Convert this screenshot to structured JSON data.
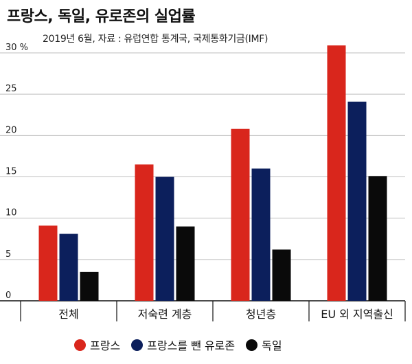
{
  "chart_data": {
    "type": "bar",
    "title": "프랑스, 독일, 유로존의 실업률",
    "subtitle": "2019년 6월, 자료 : 유럽연합 통계국, 국제통화기금(IMF)",
    "categories": [
      "전체",
      "저숙련 계층",
      "청년층",
      "EU 외 지역출신"
    ],
    "y_ticks": [
      "0",
      "5",
      "10",
      "15",
      "20",
      "25",
      "30 %"
    ],
    "ylim": [
      0,
      32
    ],
    "grid": true,
    "legend_position": "bottom",
    "series": [
      {
        "name": "프랑스",
        "color": "#d9261c",
        "values": [
          9.1,
          16.5,
          20.8,
          30.9
        ]
      },
      {
        "name": "프랑스를 뺀 유로존",
        "color": "#0c1f5c",
        "values": [
          8.1,
          15.0,
          16.0,
          24.1
        ]
      },
      {
        "name": "독일",
        "color": "#0a0a0a",
        "values": [
          3.5,
          9.0,
          6.2,
          15.1
        ]
      }
    ]
  }
}
